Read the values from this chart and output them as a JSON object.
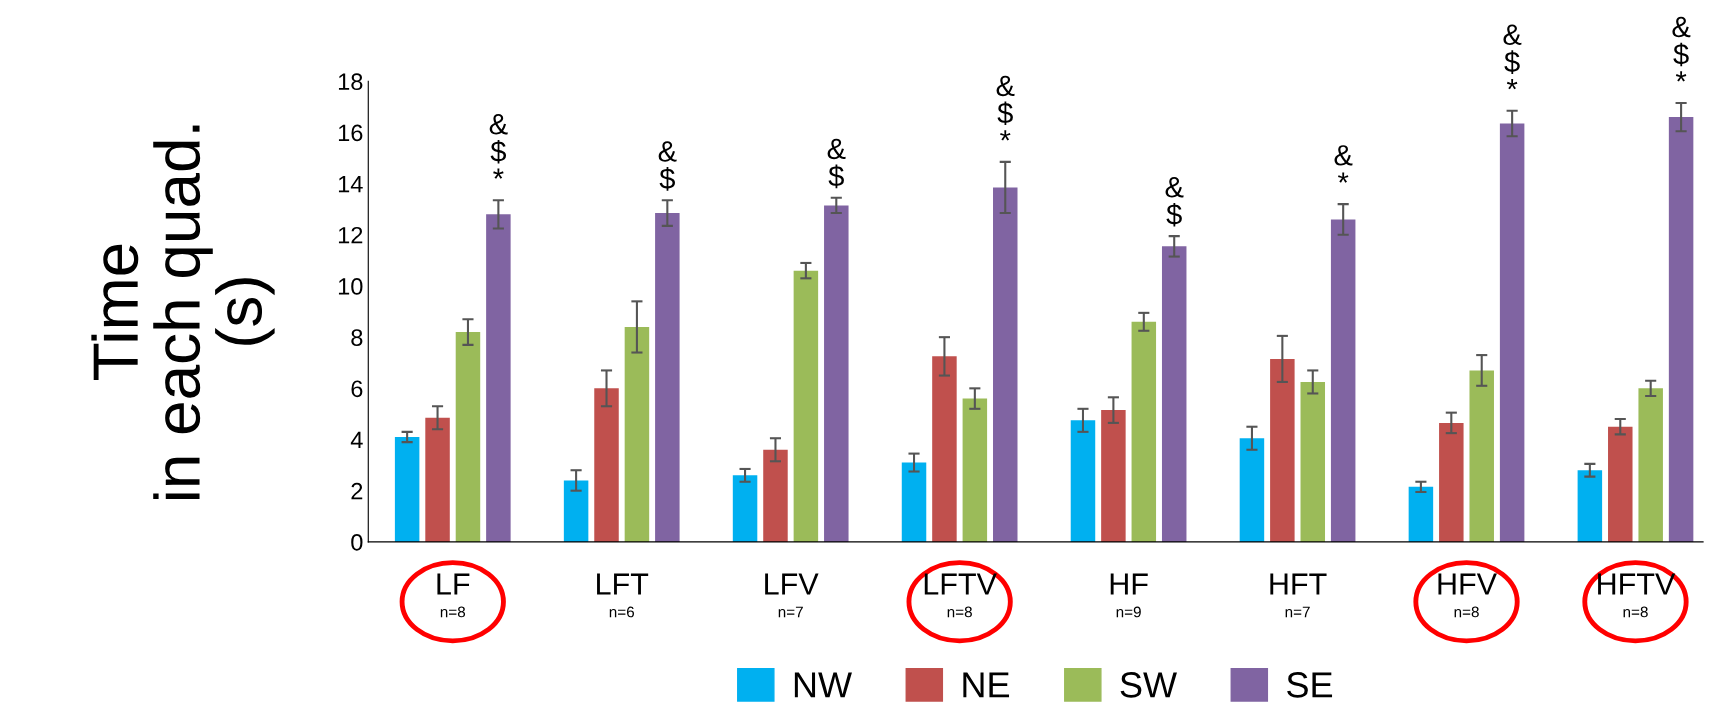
{
  "chart_data": {
    "type": "bar",
    "ylabel": "Time\nin each quad.\n(s)",
    "categories": [
      "LF",
      "LFT",
      "LFV",
      "LFTV",
      "HF",
      "HFT",
      "HFV",
      "HFTV"
    ],
    "series": [
      {
        "name": "NW",
        "color": "#00b0f0",
        "values": [
          4.1,
          2.4,
          2.6,
          3.1,
          4.75,
          4.05,
          2.15,
          2.8
        ],
        "errors": [
          0.2,
          0.4,
          0.25,
          0.35,
          0.45,
          0.45,
          0.2,
          0.25
        ]
      },
      {
        "name": "NE",
        "color": "#c0504d",
        "values": [
          4.85,
          6.0,
          3.6,
          7.25,
          5.15,
          7.15,
          4.65,
          4.5
        ],
        "errors": [
          0.45,
          0.7,
          0.45,
          0.75,
          0.5,
          0.9,
          0.4,
          0.3
        ]
      },
      {
        "name": "SW",
        "color": "#9bbb59",
        "values": [
          8.2,
          8.4,
          10.6,
          5.6,
          8.6,
          6.25,
          6.7,
          6.0
        ],
        "errors": [
          0.5,
          1.0,
          0.3,
          0.4,
          0.35,
          0.45,
          0.6,
          0.3
        ]
      },
      {
        "name": "SE",
        "color": "#8064a2",
        "values": [
          12.8,
          12.85,
          13.15,
          13.85,
          11.55,
          12.6,
          16.35,
          16.6
        ],
        "errors": [
          0.55,
          0.5,
          0.3,
          1.0,
          0.4,
          0.6,
          0.5,
          0.55
        ]
      }
    ],
    "ylim": [
      0,
      18
    ],
    "yticks": [
      0,
      2,
      4,
      6,
      8,
      10,
      12,
      14,
      16,
      18
    ],
    "grid": false,
    "legend": "bottom",
    "annotations": [
      "&\n$\n*",
      "&\n$",
      "&\n$",
      "&\n$\n*",
      "&\n$",
      "&\n*",
      "&\n$\n*",
      "&\n$\n*",
      "n=8",
      "n=6",
      "n=7",
      "n=8",
      "n=9",
      "n=7",
      "n=8",
      "n=8"
    ]
  }
}
